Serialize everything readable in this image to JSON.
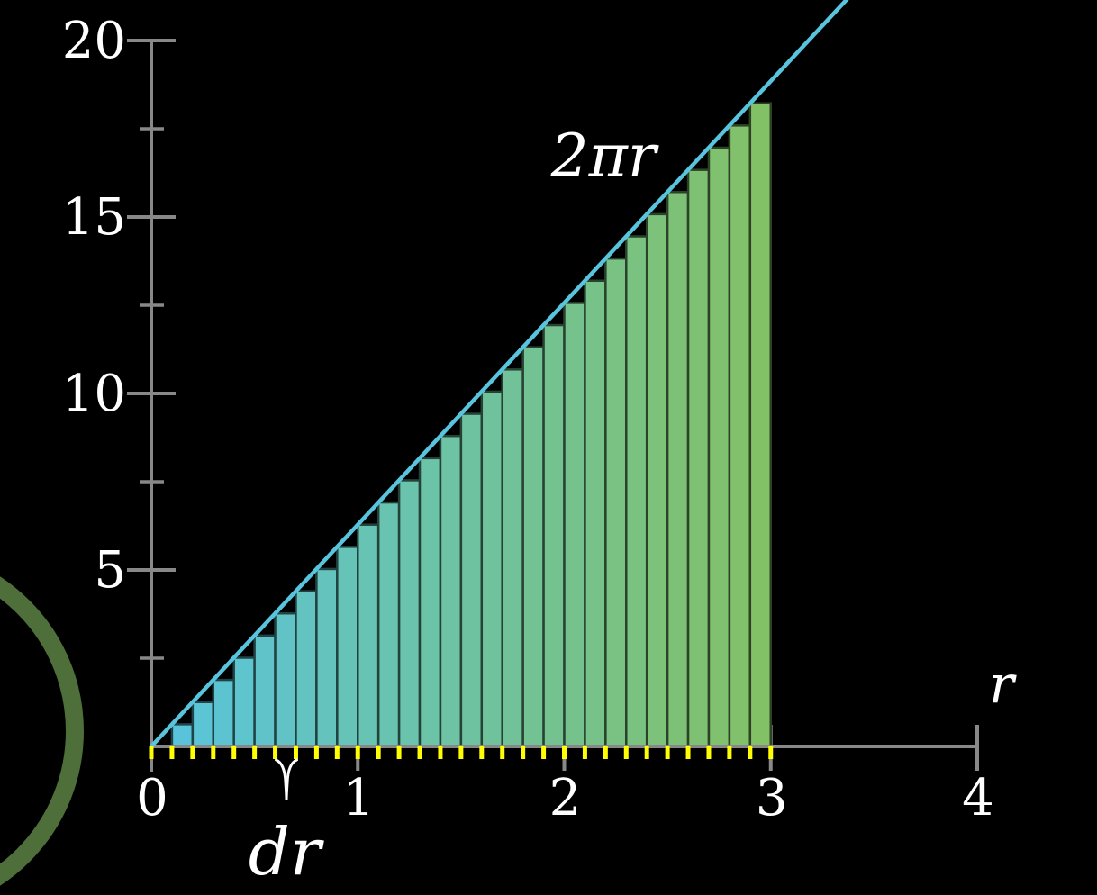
{
  "chart_data": {
    "type": "bar",
    "subtype": "riemann-rectangles-under-line",
    "title": "",
    "line_label": "2πr",
    "xlabel": "r",
    "ylabel": "",
    "dr_label": "dr",
    "dr": 0.1,
    "dr_interval": [
      0.6,
      0.7
    ],
    "sampling": "left-endpoint",
    "line_slope": 6.2832,
    "xlim": [
      0,
      4
    ],
    "ylim": [
      0,
      20
    ],
    "x_ticks": [
      0,
      1,
      2,
      3,
      4
    ],
    "x_tick_labels": [
      "0",
      "1",
      "2",
      "3",
      "4"
    ],
    "y_ticks": [
      5,
      10,
      15,
      20
    ],
    "y_tick_labels": [
      "5",
      "10",
      "15",
      "20"
    ],
    "y_minor_ticks": [
      2.5,
      7.5,
      12.5,
      17.5
    ],
    "x_minor_tick_range": [
      0,
      3
    ],
    "bar_left_endpoints": [
      0.0,
      0.1,
      0.2,
      0.3,
      0.4,
      0.5,
      0.6,
      0.7,
      0.8,
      0.9,
      1.0,
      1.1,
      1.2,
      1.3,
      1.4,
      1.5,
      1.6,
      1.7,
      1.8,
      1.9,
      2.0,
      2.1,
      2.2,
      2.3,
      2.4,
      2.5,
      2.6,
      2.7,
      2.8,
      2.9
    ],
    "values": [
      0,
      0.628,
      1.257,
      1.885,
      2.513,
      3.142,
      3.77,
      4.398,
      5.027,
      5.655,
      6.283,
      6.912,
      7.54,
      8.168,
      8.796,
      9.425,
      10.053,
      10.681,
      11.31,
      11.938,
      12.566,
      13.195,
      13.823,
      14.451,
      15.08,
      15.708,
      16.336,
      16.965,
      17.593,
      18.221
    ],
    "grid": false,
    "legend": false,
    "colors": {
      "background": "#000000",
      "axis": "#888888",
      "line": "#58C4DD",
      "bar_start": "#58C4DD",
      "bar_end": "#83C167",
      "minor_tick": "#FFFF00",
      "text": "#FFFFFF",
      "brace": "#FFFFFF",
      "circle_arc": "#4E6F3A"
    }
  }
}
